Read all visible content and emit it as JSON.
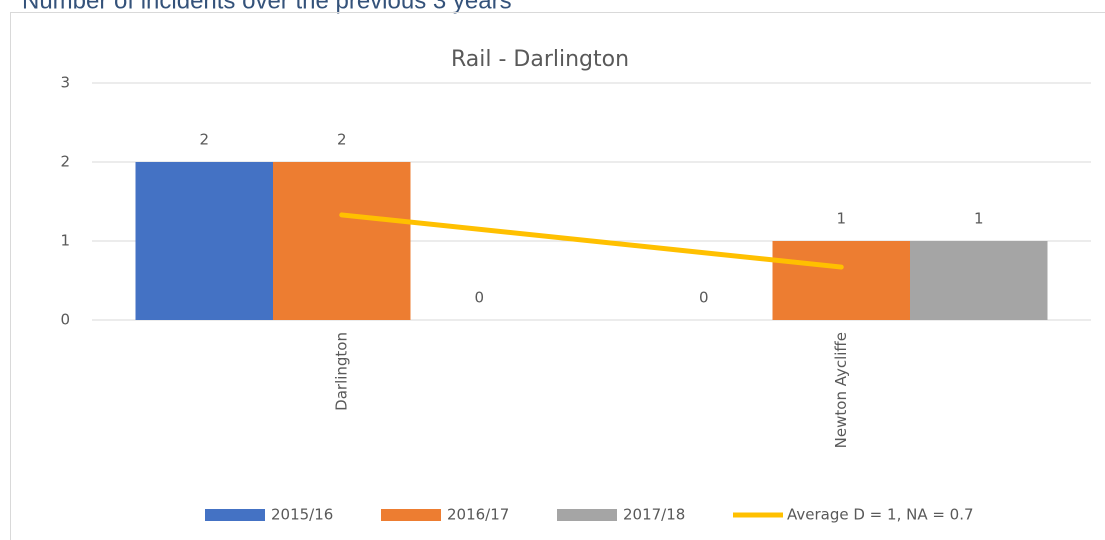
{
  "heading": "Number of incidents over the previous 3 years",
  "chart_data": {
    "type": "bar",
    "title": "Rail - Darlington",
    "categories": [
      "Darlington",
      "Newton Aycliffe"
    ],
    "series": [
      {
        "name": "2015/16",
        "color": "#4472c4",
        "values": [
          2,
          0
        ]
      },
      {
        "name": "2016/17",
        "color": "#ed7d31",
        "values": [
          2,
          1
        ]
      },
      {
        "name": "2017/18",
        "color": "#a5a5a5",
        "values": [
          0,
          1
        ]
      },
      {
        "name": "Average D = 1, NA = 0.7",
        "color": "#ffc000",
        "type": "line",
        "values": [
          1.33,
          0.67
        ]
      }
    ],
    "ylim": [
      0,
      3
    ],
    "yticks": [
      0,
      1,
      2,
      3
    ],
    "grid": true,
    "legend": "bottom"
  }
}
